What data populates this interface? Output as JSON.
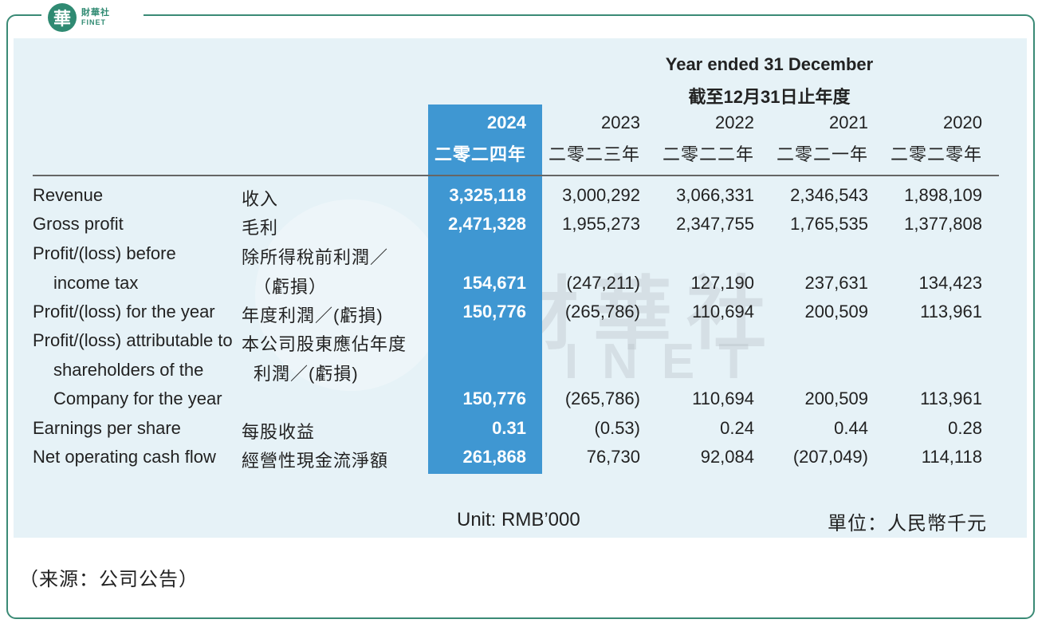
{
  "brand": {
    "mark": "華",
    "name_cn": "財華社",
    "name_en": "FINET"
  },
  "watermark": {
    "cn": "財華社",
    "en": "FINET"
  },
  "header": {
    "title_en": "Year ended 31 December",
    "title_cn": "截至12月31日止年度",
    "years": [
      {
        "year": "2024",
        "cn": "二零二四年"
      },
      {
        "year": "2023",
        "cn": "二零二三年"
      },
      {
        "year": "2022",
        "cn": "二零二二年"
      },
      {
        "year": "2021",
        "cn": "二零二一年"
      },
      {
        "year": "2020",
        "cn": "二零二零年"
      }
    ]
  },
  "rows": [
    {
      "label_en": [
        "Revenue"
      ],
      "label_cn": [
        "收入"
      ],
      "values": [
        "3,325,118",
        "3,000,292",
        "3,066,331",
        "2,346,543",
        "1,898,109"
      ]
    },
    {
      "label_en": [
        "Gross profit"
      ],
      "label_cn": [
        "毛利"
      ],
      "values": [
        "2,471,328",
        "1,955,273",
        "2,347,755",
        "1,765,535",
        "1,377,808"
      ]
    },
    {
      "label_en": [
        "Profit/(loss) before",
        "income tax"
      ],
      "label_cn": [
        "除所得稅前利潤／",
        "（虧損）"
      ],
      "values": [
        "154,671",
        "(247,211)",
        "127,190",
        "237,631",
        "134,423"
      ]
    },
    {
      "label_en": [
        "Profit/(loss) for the year"
      ],
      "label_cn": [
        "年度利潤／(虧損)"
      ],
      "values": [
        "150,776",
        "(265,786)",
        "110,694",
        "200,509",
        "113,961"
      ]
    },
    {
      "label_en": [
        "Profit/(loss) attributable to",
        "shareholders of the",
        "Company for the year"
      ],
      "label_cn": [
        "本公司股東應佔年度",
        "利潤／(虧損)"
      ],
      "values": [
        "150,776",
        "(265,786)",
        "110,694",
        "200,509",
        "113,961"
      ]
    },
    {
      "label_en": [
        "Earnings per share"
      ],
      "label_cn": [
        "每股收益"
      ],
      "values": [
        "0.31",
        "(0.53)",
        "0.24",
        "0.44",
        "0.28"
      ]
    },
    {
      "label_en": [
        "Net operating cash flow"
      ],
      "label_cn": [
        "經營性現金流淨額"
      ],
      "values": [
        "261,868",
        "76,730",
        "92,084",
        "(207,049)",
        "114,118"
      ]
    }
  ],
  "footer": {
    "unit_en": "Unit: RMB’000",
    "unit_cn": "單位：人民幣千元"
  },
  "source": "（来源：公司公告）",
  "colors": {
    "highlight": "#3f97d2",
    "panel": "#e6f2f7",
    "frame": "#3a8a75"
  }
}
